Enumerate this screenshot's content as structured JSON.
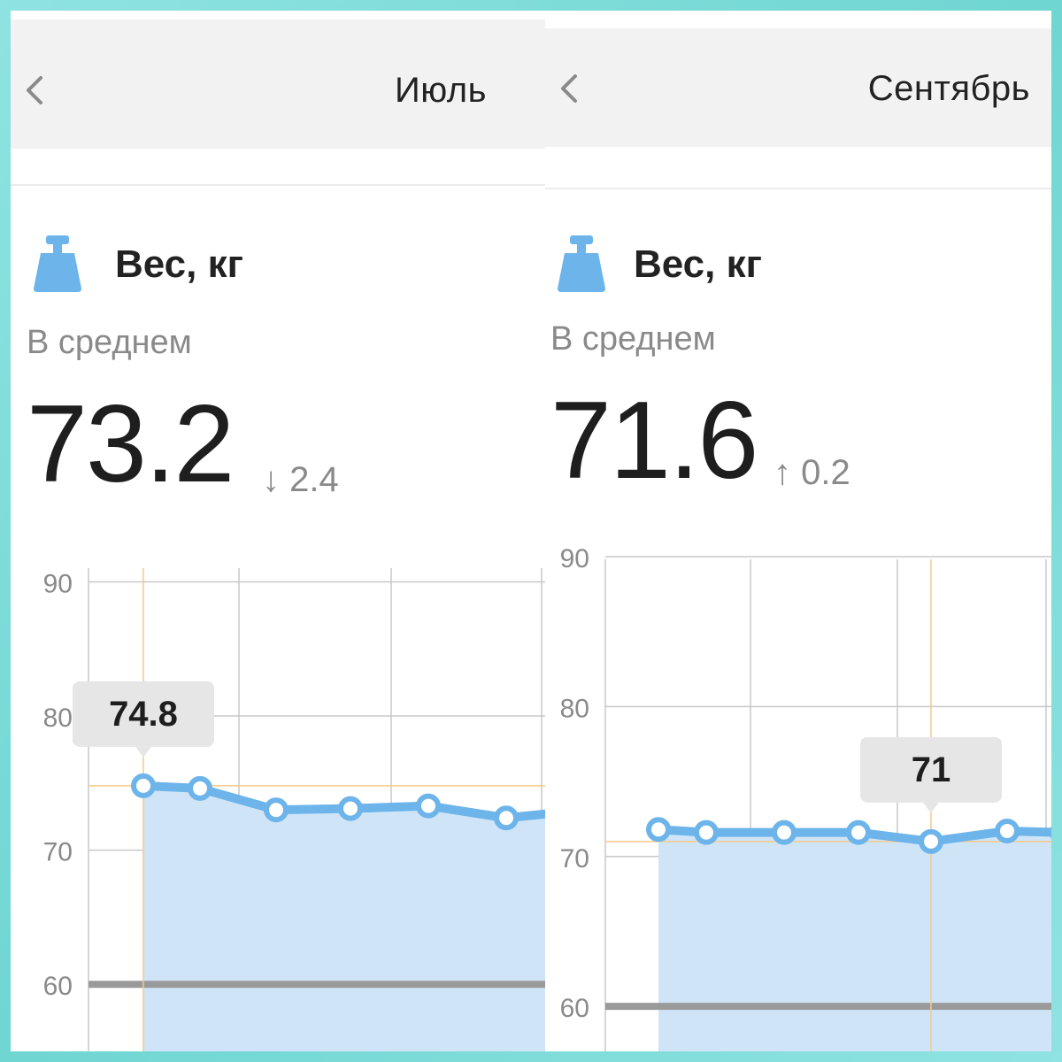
{
  "panels": [
    {
      "month": "Июль",
      "metric_title": "Вес, кг",
      "average_label": "В среднем",
      "average_value": "73.2",
      "delta_arrow": "↓",
      "delta_value": "2.4",
      "icons": {
        "back": "chevron-left-icon",
        "metric": "weight-icon"
      },
      "chart_data": {
        "type": "area",
        "y_ticks": [
          "90",
          "80",
          "70",
          "60"
        ],
        "ylim": [
          55,
          93
        ],
        "values": [
          74.8,
          74.6,
          73.0,
          73.1,
          73.3,
          72.4,
          72.8
        ],
        "tooltip": "74.8",
        "selected_index": 0,
        "goal_line": 60,
        "grid": true
      }
    },
    {
      "month": "Сентябрь",
      "metric_title": "Вес, кг",
      "average_label": "В среднем",
      "average_value": "71.6",
      "delta_arrow": "↑",
      "delta_value": "0.2",
      "icons": {
        "back": "chevron-left-icon",
        "metric": "weight-icon"
      },
      "chart_data": {
        "type": "area",
        "y_ticks": [
          "90",
          "80",
          "70",
          "60"
        ],
        "ylim": [
          57,
          91
        ],
        "values": [
          71.8,
          71.6,
          71.6,
          71.6,
          71.0,
          71.7,
          71.6
        ],
        "tooltip": "71",
        "selected_index": 4,
        "goal_line": 60,
        "grid": true
      }
    }
  ],
  "colors": {
    "accent": "#6cb4ea",
    "area_fill": "#cfe5f7",
    "grid": "#c8c8c8",
    "highlight": "#f5c98a",
    "goal_line": "#9a9a9a",
    "tooltip_bg": "#e6e6e6",
    "text_dark": "#1e1e1e",
    "text_muted": "#8a8a8a"
  }
}
